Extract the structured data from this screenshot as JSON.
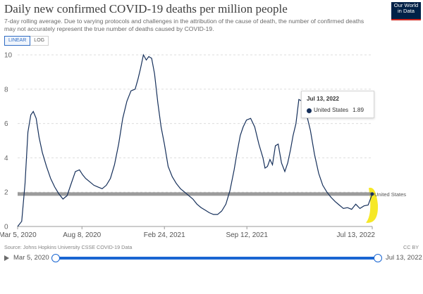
{
  "header": {
    "title": "Daily new confirmed COVID-19 deaths per million people",
    "subtitle": "7-day rolling average. Due to varying protocols and challenges in the attribution of the cause of death, the number of confirmed deaths may not accurately represent the true number of deaths caused by COVID-19.",
    "logo_line1": "Our World",
    "logo_line2": "in Data"
  },
  "scale_toggle": {
    "linear_label": "LINEAR",
    "log_label": "LOG",
    "selected": "LINEAR"
  },
  "tooltip": {
    "date": "Jul 13, 2022",
    "series": "United States",
    "value": "1.89"
  },
  "footer": {
    "source": "Source: Johns Hopkins University CSSE COVID-19 Data",
    "license": "CC BY"
  },
  "timeline": {
    "start_label": "Mar 5, 2020",
    "end_label": "Jul 13, 2022",
    "start_value": 0,
    "end_value": 1
  },
  "colors": {
    "line": "#16305b",
    "reference_line": "#8a8a8a",
    "highlight": "#f5e400",
    "accent": "#1a66d2"
  },
  "chart_data": {
    "type": "line",
    "title": "Daily new confirmed COVID-19 deaths per million people",
    "ylim": [
      0,
      10
    ],
    "yticks": [
      0,
      2,
      4,
      6,
      8,
      10
    ],
    "xtick_labels": [
      "Mar 5, 2020",
      "Aug 8, 2020",
      "Feb 24, 2021",
      "Sep 12, 2021",
      "Jul 13, 2022"
    ],
    "xtick_day": [
      0,
      156,
      356,
      556,
      860
    ],
    "x_day_range": [
      0,
      860
    ],
    "grid": "horizontal dashed",
    "reference_line": {
      "value": 1.89,
      "label": "United States"
    },
    "series": [
      {
        "name": "United States",
        "day": [
          0,
          10,
          18,
          25,
          32,
          38,
          45,
          52,
          60,
          70,
          80,
          90,
          100,
          110,
          120,
          130,
          140,
          150,
          158,
          165,
          175,
          185,
          195,
          205,
          215,
          225,
          235,
          245,
          255,
          265,
          275,
          285,
          292,
          298,
          305,
          312,
          318,
          325,
          332,
          340,
          348,
          356,
          365,
          375,
          385,
          395,
          405,
          415,
          425,
          435,
          445,
          455,
          465,
          475,
          485,
          495,
          505,
          515,
          525,
          532,
          540,
          547,
          555,
          565,
          575,
          585,
          595,
          600,
          606,
          612,
          618,
          625,
          632,
          640,
          648,
          655,
          662,
          668,
          675,
          682,
          690,
          700,
          710,
          720,
          730,
          740,
          750,
          760,
          770,
          780,
          790,
          800,
          810,
          820,
          830,
          840,
          850,
          860
        ],
        "values": [
          0,
          0.3,
          2.5,
          5.5,
          6.5,
          6.7,
          6.3,
          5.2,
          4.3,
          3.5,
          2.8,
          2.3,
          1.9,
          1.6,
          1.8,
          2.5,
          3.2,
          3.3,
          3.0,
          2.8,
          2.6,
          2.4,
          2.3,
          2.2,
          2.4,
          2.8,
          3.6,
          4.8,
          6.3,
          7.3,
          7.9,
          8.0,
          8.6,
          9.2,
          10.0,
          9.7,
          9.9,
          9.8,
          8.9,
          7.2,
          5.8,
          4.8,
          3.5,
          2.9,
          2.5,
          2.2,
          2.0,
          1.8,
          1.6,
          1.3,
          1.1,
          0.95,
          0.8,
          0.7,
          0.7,
          0.9,
          1.3,
          2.1,
          3.3,
          4.3,
          5.3,
          5.8,
          6.2,
          6.3,
          5.8,
          4.8,
          4.0,
          3.4,
          3.5,
          3.9,
          3.6,
          4.7,
          4.8,
          3.7,
          3.2,
          3.7,
          4.5,
          5.3,
          6.0,
          7.4,
          7.3,
          6.6,
          5.6,
          4.2,
          3.1,
          2.4,
          2.0,
          1.7,
          1.45,
          1.25,
          1.05,
          1.1,
          1.0,
          1.3,
          1.05,
          1.2,
          1.25,
          1.89
        ]
      }
    ]
  }
}
